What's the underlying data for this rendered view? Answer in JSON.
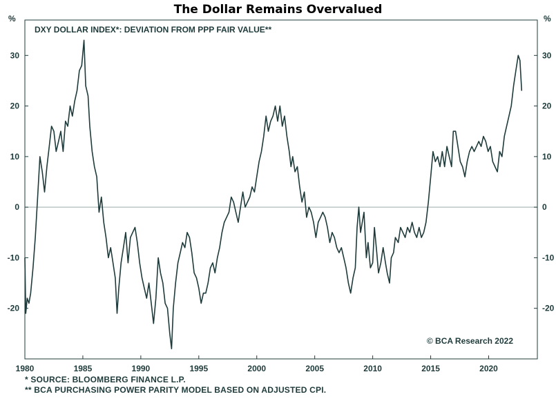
{
  "chart_data": {
    "type": "line",
    "title": "The Dollar Remains Overvalued",
    "subtitle": "DXY DOLLAR INDEX*: DEVIATION FROM PPP FAIR VALUE**",
    "unit_left": "%",
    "unit_right": "%",
    "source": "© BCA Research 2022",
    "xlim": [
      1980,
      2024.2
    ],
    "ylim": [
      -30,
      37
    ],
    "x_ticks": [
      1980,
      1985,
      1990,
      1995,
      2000,
      2005,
      2010,
      2015,
      2020
    ],
    "y_ticks": [
      30,
      20,
      10,
      0,
      -10,
      -20
    ],
    "zero_line": true,
    "grid": false,
    "colors": {
      "line": "#1e3a3a",
      "zero": "#9aa8a8",
      "axis": "#1e3a3a"
    },
    "series": [
      {
        "points": [
          [
            1980.0,
            -10
          ],
          [
            1980.08,
            -21
          ],
          [
            1980.2,
            -18
          ],
          [
            1980.35,
            -19
          ],
          [
            1980.5,
            -17
          ],
          [
            1980.7,
            -12
          ],
          [
            1980.9,
            -6
          ],
          [
            1981.1,
            2
          ],
          [
            1981.3,
            10
          ],
          [
            1981.5,
            7
          ],
          [
            1981.7,
            3
          ],
          [
            1981.9,
            8
          ],
          [
            1982.1,
            12
          ],
          [
            1982.3,
            16
          ],
          [
            1982.5,
            15
          ],
          [
            1982.7,
            11
          ],
          [
            1982.9,
            13
          ],
          [
            1983.1,
            15
          ],
          [
            1983.3,
            11
          ],
          [
            1983.5,
            17
          ],
          [
            1983.7,
            16
          ],
          [
            1983.9,
            20
          ],
          [
            1984.1,
            18
          ],
          [
            1984.3,
            21
          ],
          [
            1984.5,
            23
          ],
          [
            1984.7,
            27
          ],
          [
            1984.9,
            28
          ],
          [
            1985.1,
            33
          ],
          [
            1985.25,
            24
          ],
          [
            1985.45,
            22
          ],
          [
            1985.6,
            16
          ],
          [
            1985.8,
            11
          ],
          [
            1986.0,
            8
          ],
          [
            1986.2,
            6
          ],
          [
            1986.4,
            -1
          ],
          [
            1986.6,
            2
          ],
          [
            1986.8,
            -3
          ],
          [
            1987.0,
            -6
          ],
          [
            1987.2,
            -10
          ],
          [
            1987.4,
            -8
          ],
          [
            1987.6,
            -11
          ],
          [
            1987.8,
            -14
          ],
          [
            1987.95,
            -21
          ],
          [
            1988.1,
            -16
          ],
          [
            1988.3,
            -11
          ],
          [
            1988.5,
            -8
          ],
          [
            1988.7,
            -5
          ],
          [
            1988.9,
            -11
          ],
          [
            1989.1,
            -6
          ],
          [
            1989.3,
            -5
          ],
          [
            1989.5,
            -4
          ],
          [
            1989.7,
            -7
          ],
          [
            1989.9,
            -11
          ],
          [
            1990.1,
            -14
          ],
          [
            1990.3,
            -16
          ],
          [
            1990.5,
            -18
          ],
          [
            1990.7,
            -15
          ],
          [
            1990.9,
            -19
          ],
          [
            1991.1,
            -23
          ],
          [
            1991.3,
            -18
          ],
          [
            1991.5,
            -10
          ],
          [
            1991.7,
            -13
          ],
          [
            1991.9,
            -15
          ],
          [
            1992.1,
            -19
          ],
          [
            1992.3,
            -20
          ],
          [
            1992.5,
            -25
          ],
          [
            1992.65,
            -28
          ],
          [
            1992.8,
            -20
          ],
          [
            1993.0,
            -15
          ],
          [
            1993.2,
            -11
          ],
          [
            1993.4,
            -9
          ],
          [
            1993.6,
            -7
          ],
          [
            1993.8,
            -8
          ],
          [
            1994.0,
            -5
          ],
          [
            1994.2,
            -6
          ],
          [
            1994.4,
            -9
          ],
          [
            1994.6,
            -13
          ],
          [
            1994.8,
            -14
          ],
          [
            1995.0,
            -16
          ],
          [
            1995.2,
            -19
          ],
          [
            1995.4,
            -17
          ],
          [
            1995.6,
            -17
          ],
          [
            1995.8,
            -15
          ],
          [
            1996.0,
            -12
          ],
          [
            1996.2,
            -11
          ],
          [
            1996.4,
            -13
          ],
          [
            1996.6,
            -10
          ],
          [
            1996.8,
            -8
          ],
          [
            1997.0,
            -5
          ],
          [
            1997.2,
            -3
          ],
          [
            1997.4,
            -2
          ],
          [
            1997.6,
            -1
          ],
          [
            1997.8,
            2
          ],
          [
            1998.0,
            1
          ],
          [
            1998.2,
            -1
          ],
          [
            1998.4,
            -3
          ],
          [
            1998.6,
            0
          ],
          [
            1998.8,
            3
          ],
          [
            1999.0,
            0
          ],
          [
            1999.2,
            1
          ],
          [
            1999.4,
            2
          ],
          [
            1999.6,
            4
          ],
          [
            1999.8,
            3
          ],
          [
            2000.0,
            6
          ],
          [
            2000.2,
            9
          ],
          [
            2000.4,
            11
          ],
          [
            2000.6,
            14
          ],
          [
            2000.8,
            18
          ],
          [
            2001.0,
            15
          ],
          [
            2001.2,
            17
          ],
          [
            2001.4,
            18
          ],
          [
            2001.6,
            20
          ],
          [
            2001.8,
            17
          ],
          [
            2002.0,
            20
          ],
          [
            2002.2,
            16
          ],
          [
            2002.4,
            18
          ],
          [
            2002.6,
            14
          ],
          [
            2002.8,
            11
          ],
          [
            2002.95,
            8
          ],
          [
            2003.1,
            10
          ],
          [
            2003.3,
            7
          ],
          [
            2003.5,
            8
          ],
          [
            2003.7,
            4
          ],
          [
            2003.9,
            1
          ],
          [
            2004.1,
            3
          ],
          [
            2004.3,
            -2
          ],
          [
            2004.5,
            0
          ],
          [
            2004.7,
            -1
          ],
          [
            2004.9,
            -3
          ],
          [
            2005.1,
            -6
          ],
          [
            2005.3,
            -3
          ],
          [
            2005.5,
            -2
          ],
          [
            2005.7,
            -1
          ],
          [
            2005.9,
            -2
          ],
          [
            2006.1,
            -4
          ],
          [
            2006.3,
            -7
          ],
          [
            2006.5,
            -5
          ],
          [
            2006.7,
            -6
          ],
          [
            2006.9,
            -8
          ],
          [
            2007.1,
            -9
          ],
          [
            2007.3,
            -8
          ],
          [
            2007.5,
            -10
          ],
          [
            2007.7,
            -12
          ],
          [
            2007.9,
            -15
          ],
          [
            2008.1,
            -17
          ],
          [
            2008.3,
            -14
          ],
          [
            2008.5,
            -12
          ],
          [
            2008.65,
            -4
          ],
          [
            2008.8,
            0
          ],
          [
            2008.95,
            -5
          ],
          [
            2009.1,
            -3
          ],
          [
            2009.25,
            -1
          ],
          [
            2009.45,
            -10
          ],
          [
            2009.6,
            -7
          ],
          [
            2009.8,
            -12
          ],
          [
            2010.0,
            -11
          ],
          [
            2010.15,
            -4
          ],
          [
            2010.35,
            -9
          ],
          [
            2010.5,
            -13
          ],
          [
            2010.7,
            -11
          ],
          [
            2010.9,
            -8
          ],
          [
            2011.1,
            -11
          ],
          [
            2011.25,
            -13
          ],
          [
            2011.45,
            -15
          ],
          [
            2011.6,
            -10
          ],
          [
            2011.8,
            -9
          ],
          [
            2011.95,
            -6
          ],
          [
            2012.2,
            -7
          ],
          [
            2012.4,
            -4
          ],
          [
            2012.6,
            -5
          ],
          [
            2012.8,
            -6
          ],
          [
            2013.0,
            -4
          ],
          [
            2013.2,
            -5
          ],
          [
            2013.4,
            -3
          ],
          [
            2013.6,
            -5
          ],
          [
            2013.8,
            -6
          ],
          [
            2014.0,
            -4
          ],
          [
            2014.2,
            -6
          ],
          [
            2014.4,
            -5
          ],
          [
            2014.6,
            -3
          ],
          [
            2014.8,
            1
          ],
          [
            2015.0,
            6
          ],
          [
            2015.2,
            11
          ],
          [
            2015.4,
            9
          ],
          [
            2015.6,
            10
          ],
          [
            2015.8,
            8
          ],
          [
            2016.0,
            11
          ],
          [
            2016.2,
            8
          ],
          [
            2016.4,
            12
          ],
          [
            2016.6,
            10
          ],
          [
            2016.8,
            8
          ],
          [
            2016.95,
            15
          ],
          [
            2017.15,
            15
          ],
          [
            2017.35,
            12
          ],
          [
            2017.55,
            9
          ],
          [
            2017.75,
            8
          ],
          [
            2017.95,
            6
          ],
          [
            2018.15,
            9
          ],
          [
            2018.35,
            11
          ],
          [
            2018.55,
            12
          ],
          [
            2018.75,
            11
          ],
          [
            2018.95,
            12
          ],
          [
            2019.15,
            13
          ],
          [
            2019.35,
            12
          ],
          [
            2019.55,
            14
          ],
          [
            2019.75,
            13
          ],
          [
            2019.95,
            11
          ],
          [
            2020.15,
            12
          ],
          [
            2020.35,
            9
          ],
          [
            2020.55,
            8
          ],
          [
            2020.75,
            7
          ],
          [
            2020.95,
            11
          ],
          [
            2021.15,
            10
          ],
          [
            2021.35,
            14
          ],
          [
            2021.55,
            16
          ],
          [
            2021.75,
            18
          ],
          [
            2021.95,
            20
          ],
          [
            2022.15,
            24
          ],
          [
            2022.35,
            27
          ],
          [
            2022.55,
            30
          ],
          [
            2022.7,
            29
          ],
          [
            2022.85,
            23
          ]
        ]
      }
    ],
    "footnotes": [
      "*  SOURCE: BLOOMBERG FINANCE L.P.",
      "** BCA PURCHASING POWER PARITY MODEL BASED ON ADJUSTED CPI."
    ]
  }
}
